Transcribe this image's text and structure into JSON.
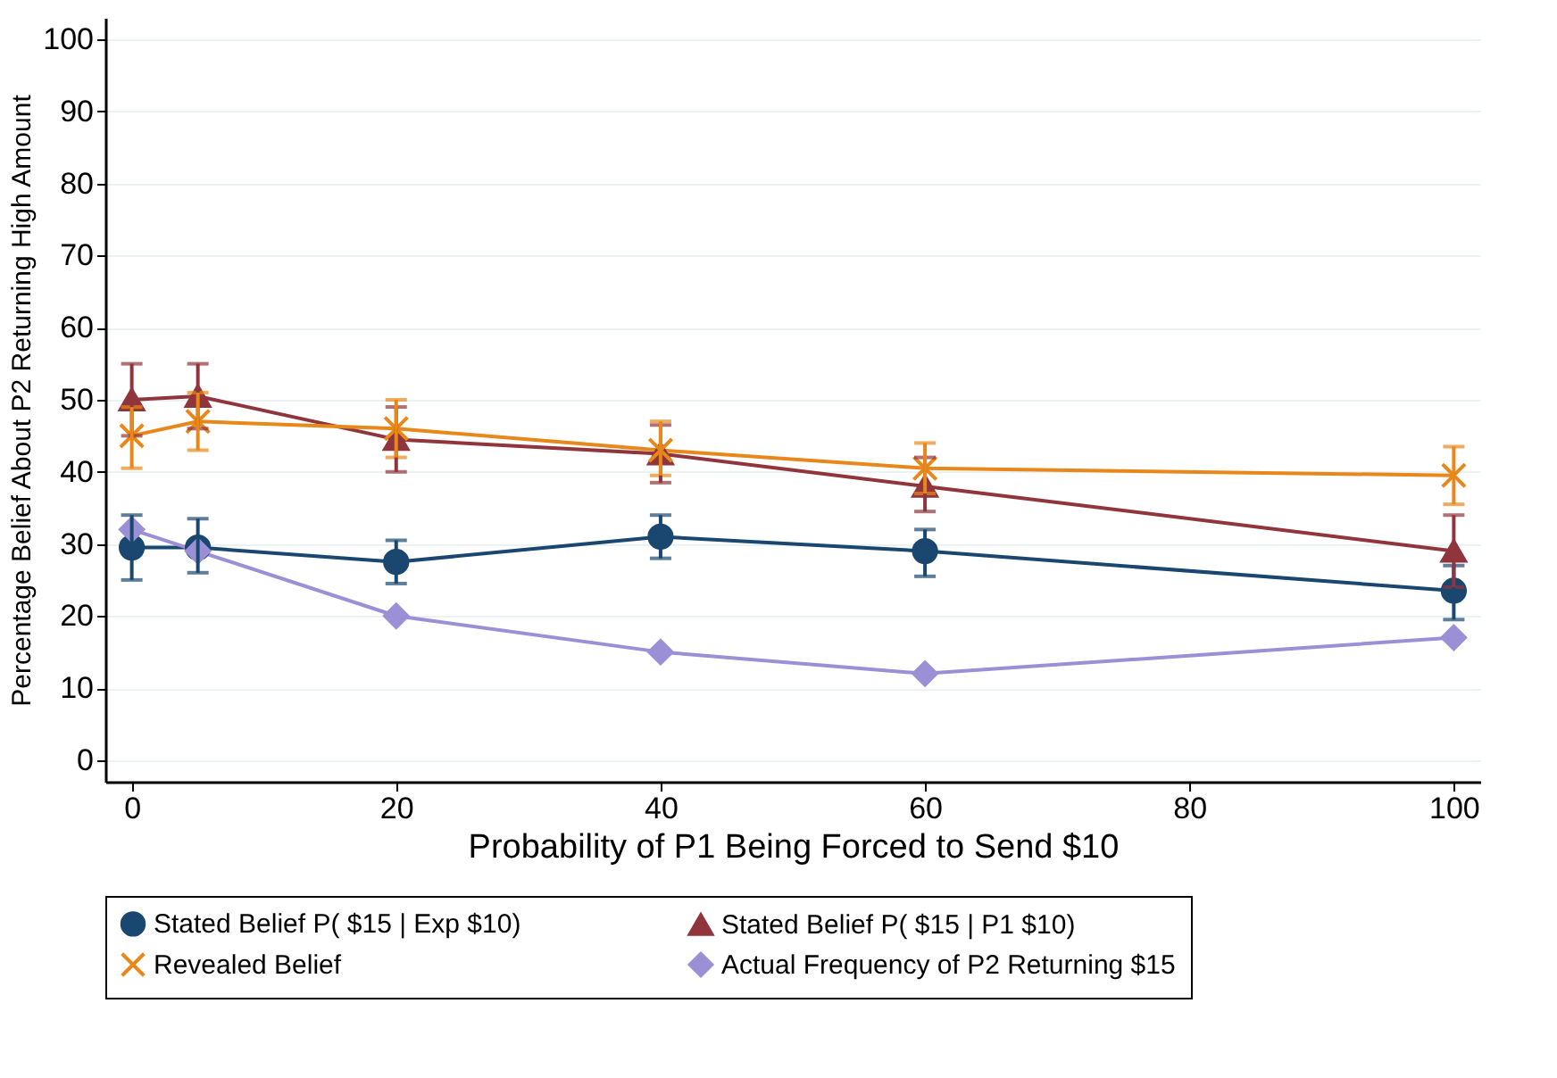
{
  "chart_data": {
    "type": "line",
    "xlabel": "Probability of P1 Being Forced to Send $10",
    "ylabel": "Percentage Belief About P2 Returning High Amount",
    "x": [
      0,
      5,
      20,
      40,
      60,
      100
    ],
    "xlim": [
      -2,
      102
    ],
    "xticks": [
      0,
      20,
      40,
      60,
      80,
      100
    ],
    "ylim": [
      -3,
      103
    ],
    "yticks": [
      0,
      10,
      20,
      30,
      40,
      50,
      60,
      70,
      80,
      90,
      100
    ],
    "grid": "y",
    "legend": "bottom",
    "series": [
      {
        "name": "Stated Belief P( $15 | Exp $10)",
        "color": "#1a476f",
        "marker": "circle",
        "values": [
          29.5,
          29.5,
          27.5,
          31,
          29,
          23.5
        ],
        "errors": [
          [
            25,
            34
          ],
          [
            26,
            33.5
          ],
          [
            24.5,
            30.5
          ],
          [
            28,
            34
          ],
          [
            25.5,
            32
          ],
          [
            19.5,
            27
          ]
        ]
      },
      {
        "name": "Stated Belief P( $15 | P1 $10)",
        "color": "#90353b",
        "marker": "triangle",
        "values": [
          50,
          50.5,
          44.5,
          42.5,
          38,
          29
        ],
        "errors": [
          [
            45,
            55
          ],
          [
            46,
            55
          ],
          [
            40,
            49
          ],
          [
            38.5,
            46.5
          ],
          [
            34.5,
            42
          ],
          [
            24,
            34
          ]
        ]
      },
      {
        "name": "Revealed Belief",
        "color": "#e8871a",
        "marker": "cross",
        "values": [
          45,
          47,
          46,
          43,
          40.5,
          39.5
        ],
        "errors": [
          [
            40.5,
            49
          ],
          [
            43,
            51
          ],
          [
            42,
            50
          ],
          [
            39.5,
            47
          ],
          [
            37,
            44
          ],
          [
            35.5,
            43.5
          ]
        ]
      },
      {
        "name": "Actual Frequency of P2 Returning $15",
        "color": "#9b8fd6",
        "marker": "diamond",
        "values": [
          32,
          29,
          20,
          15,
          12,
          17
        ]
      }
    ]
  }
}
